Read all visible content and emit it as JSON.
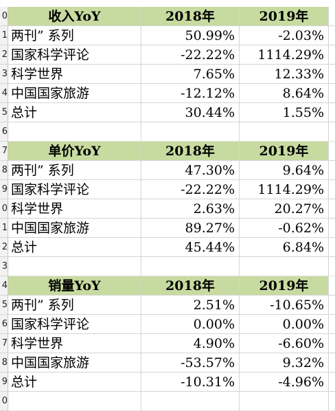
{
  "row_numbers": [
    "0",
    "1",
    "2",
    "3",
    "4",
    "5",
    "6",
    "7",
    "8",
    "9",
    "0",
    "1",
    "2",
    "3",
    "4",
    "5",
    "6",
    "7",
    "8",
    "9",
    "0"
  ],
  "tables": [
    {
      "title": "收入YoY",
      "years": [
        "2018年",
        "2019年"
      ],
      "rows": [
        {
          "label": "两刊” 系列",
          "v2018": "50.99%",
          "v2019": "-2.03%"
        },
        {
          "label": "国家科学评论",
          "v2018": "-22.22%",
          "v2019": "1114.29%"
        },
        {
          "label": "科学世界",
          "v2018": "7.65%",
          "v2019": "12.33%"
        },
        {
          "label": "中国国家旅游",
          "v2018": "-12.12%",
          "v2019": "8.64%"
        },
        {
          "label": "总计",
          "v2018": "30.44%",
          "v2019": "1.55%"
        }
      ]
    },
    {
      "title": "单价YoY",
      "years": [
        "2018年",
        "2019年"
      ],
      "rows": [
        {
          "label": "两刊” 系列",
          "v2018": "47.30%",
          "v2019": "9.64%"
        },
        {
          "label": "国家科学评论",
          "v2018": "-22.22%",
          "v2019": "1114.29%"
        },
        {
          "label": "科学世界",
          "v2018": "2.63%",
          "v2019": "20.27%"
        },
        {
          "label": "中国国家旅游",
          "v2018": "89.27%",
          "v2019": "-0.62%"
        },
        {
          "label": "总计",
          "v2018": "45.44%",
          "v2019": "6.84%"
        }
      ]
    },
    {
      "title": "销量YoY",
      "years": [
        "2018年",
        "2019年"
      ],
      "rows": [
        {
          "label": "两刊” 系列",
          "v2018": "2.51%",
          "v2019": "-10.65%"
        },
        {
          "label": "国家科学评论",
          "v2018": "0.00%",
          "v2019": "0.00%"
        },
        {
          "label": "科学世界",
          "v2018": "4.90%",
          "v2019": "-6.60%"
        },
        {
          "label": "中国国家旅游",
          "v2018": "-53.57%",
          "v2019": "9.32%"
        },
        {
          "label": "总计",
          "v2018": "-10.31%",
          "v2019": "-4.96%"
        }
      ]
    }
  ],
  "colors": {
    "header_fill": "#c7dba0",
    "gridline": "#d4d4d4"
  }
}
